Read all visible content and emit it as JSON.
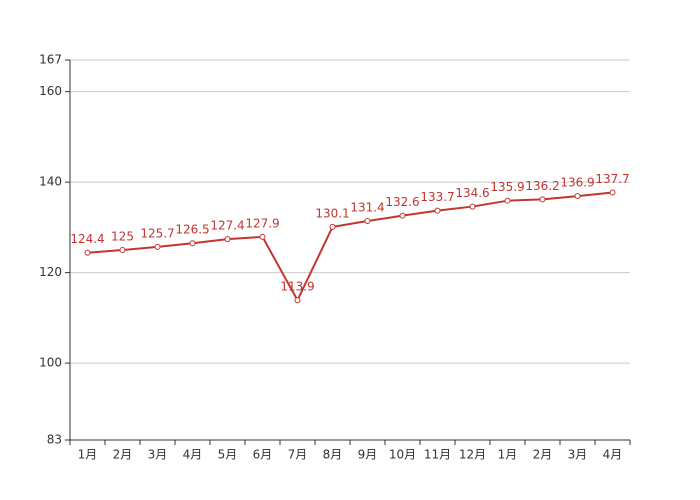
{
  "chart_data": {
    "type": "line",
    "categories": [
      "1月",
      "2月",
      "3月",
      "4月",
      "5月",
      "6月",
      "7月",
      "8月",
      "9月",
      "10月",
      "11月",
      "12月",
      "1月",
      "2月",
      "3月",
      "4月"
    ],
    "values": [
      124.4,
      125,
      125.7,
      126.5,
      127.4,
      127.9,
      113.9,
      130.1,
      131.4,
      132.6,
      133.7,
      134.6,
      135.9,
      136.2,
      136.9,
      137.7
    ],
    "color": "#c23531",
    "ylim": [
      83,
      167
    ],
    "yticks": [
      83,
      100,
      120,
      140,
      160,
      167
    ],
    "grid": true
  }
}
